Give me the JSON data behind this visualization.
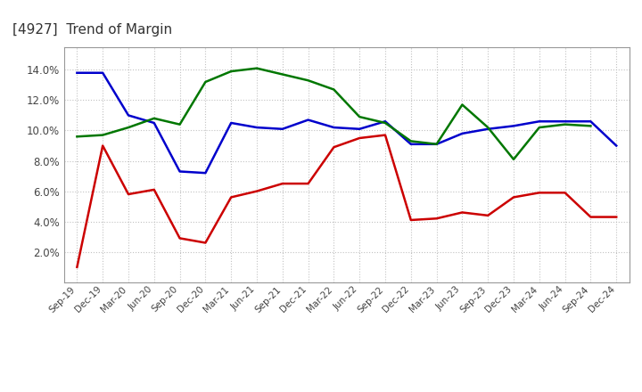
{
  "title": "[4927]  Trend of Margin",
  "x_labels": [
    "Sep-19",
    "Dec-19",
    "Mar-20",
    "Jun-20",
    "Sep-20",
    "Dec-20",
    "Mar-21",
    "Jun-21",
    "Sep-21",
    "Dec-21",
    "Mar-22",
    "Jun-22",
    "Sep-22",
    "Dec-22",
    "Mar-23",
    "Jun-23",
    "Sep-23",
    "Dec-23",
    "Mar-24",
    "Jun-24",
    "Sep-24",
    "Dec-24"
  ],
  "ordinary_income": [
    13.8,
    13.8,
    11.0,
    10.5,
    7.3,
    7.2,
    10.5,
    10.2,
    10.1,
    10.7,
    10.2,
    10.1,
    10.6,
    9.1,
    9.1,
    9.8,
    10.1,
    10.3,
    10.6,
    10.6,
    10.6,
    9.0
  ],
  "net_income": [
    1.0,
    9.0,
    5.8,
    6.1,
    2.9,
    2.6,
    5.6,
    6.0,
    6.5,
    6.5,
    8.9,
    9.5,
    9.7,
    4.1,
    4.2,
    4.6,
    4.4,
    5.6,
    5.9,
    5.9,
    4.3,
    4.3
  ],
  "operating_cashflow": [
    9.6,
    9.7,
    10.2,
    10.8,
    10.4,
    13.2,
    13.9,
    14.1,
    13.7,
    13.3,
    12.7,
    10.9,
    10.5,
    9.3,
    9.1,
    11.7,
    10.2,
    8.1,
    10.2,
    10.4,
    10.3,
    null
  ],
  "ylim": [
    0,
    15.5
  ],
  "yticks": [
    2.0,
    4.0,
    6.0,
    8.0,
    10.0,
    12.0,
    14.0
  ],
  "background_color": "#ffffff",
  "grid_color": "#bbbbbb",
  "color_ordinary": "#0000cc",
  "color_net": "#cc0000",
  "color_cashflow": "#007700",
  "title_color": "#333333",
  "tick_color": "#444444"
}
